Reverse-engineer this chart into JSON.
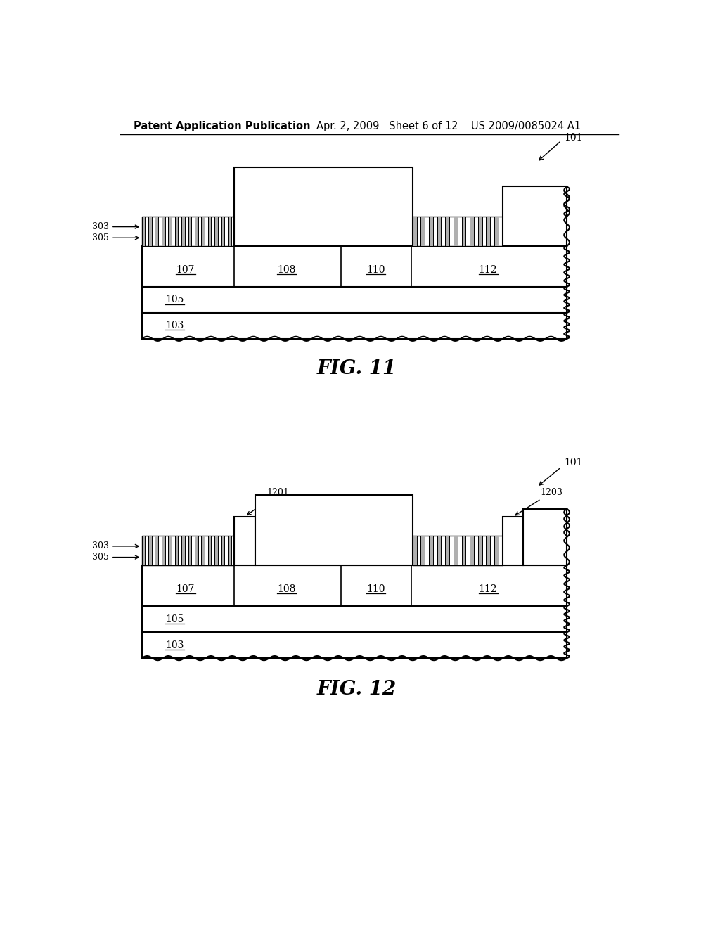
{
  "bg_color": "#ffffff",
  "header_left": "Patent Application Publication",
  "header_mid": "Apr. 2, 2009   Sheet 6 of 12",
  "header_right": "US 2009/0085024 A1",
  "fig11_label": "FIG. 11",
  "fig12_label": "FIG. 12",
  "line_color": "#000000",
  "line_width": 1.5
}
